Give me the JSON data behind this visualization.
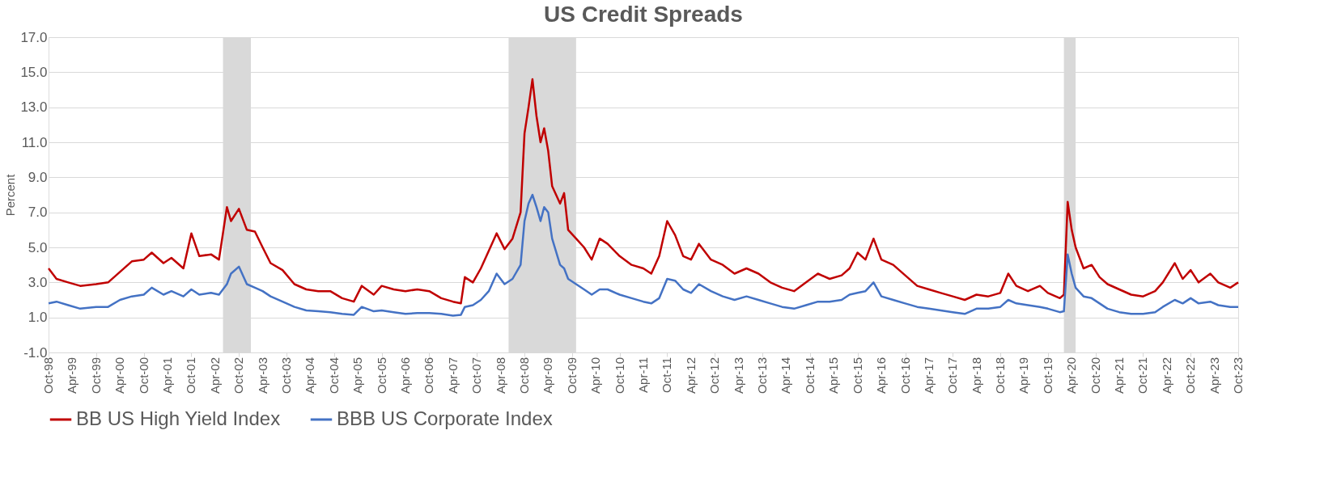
{
  "chart_data": {
    "type": "line",
    "title": "US Credit Spreads",
    "ylabel": "Percent",
    "x": [
      "1998-10",
      "1998-12",
      "1999-03",
      "1999-06",
      "1999-10",
      "2000-01",
      "2000-04",
      "2000-07",
      "2000-10",
      "2000-12",
      "2001-03",
      "2001-05",
      "2001-08",
      "2001-10",
      "2001-12",
      "2002-03",
      "2002-05",
      "2002-07",
      "2002-08",
      "2002-10",
      "2002-12",
      "2003-02",
      "2003-04",
      "2003-06",
      "2003-09",
      "2003-12",
      "2004-03",
      "2004-06",
      "2004-09",
      "2004-12",
      "2005-03",
      "2005-05",
      "2005-08",
      "2005-10",
      "2006-01",
      "2006-04",
      "2006-07",
      "2006-10",
      "2007-01",
      "2007-04",
      "2007-06",
      "2007-07",
      "2007-09",
      "2007-11",
      "2008-01",
      "2008-03",
      "2008-05",
      "2008-07",
      "2008-09",
      "2008-10",
      "2008-11",
      "2008-12",
      "2009-01",
      "2009-02",
      "2009-03",
      "2009-04",
      "2009-05",
      "2009-07",
      "2009-08",
      "2009-09",
      "2009-11",
      "2010-01",
      "2010-03",
      "2010-05",
      "2010-07",
      "2010-10",
      "2011-01",
      "2011-04",
      "2011-06",
      "2011-08",
      "2011-10",
      "2011-12",
      "2012-02",
      "2012-04",
      "2012-06",
      "2012-09",
      "2012-12",
      "2013-03",
      "2013-06",
      "2013-09",
      "2013-12",
      "2014-03",
      "2014-06",
      "2014-09",
      "2014-12",
      "2015-03",
      "2015-06",
      "2015-08",
      "2015-10",
      "2015-12",
      "2016-02",
      "2016-04",
      "2016-07",
      "2016-10",
      "2017-01",
      "2017-04",
      "2017-07",
      "2017-10",
      "2018-01",
      "2018-04",
      "2018-07",
      "2018-10",
      "2018-12",
      "2019-02",
      "2019-05",
      "2019-08",
      "2019-10",
      "2020-01",
      "2020-02",
      "2020-03",
      "2020-04",
      "2020-05",
      "2020-07",
      "2020-09",
      "2020-11",
      "2021-01",
      "2021-04",
      "2021-07",
      "2021-10",
      "2022-01",
      "2022-03",
      "2022-06",
      "2022-08",
      "2022-10",
      "2022-12",
      "2023-03",
      "2023-05",
      "2023-08",
      "2023-10"
    ],
    "series": [
      {
        "name": "BB US High Yield Index",
        "color": "#c00000",
        "values": [
          3.8,
          3.2,
          3.0,
          2.8,
          2.9,
          3.0,
          3.6,
          4.2,
          4.3,
          4.7,
          4.1,
          4.4,
          3.8,
          5.8,
          4.5,
          4.6,
          4.3,
          7.3,
          6.5,
          7.2,
          6.0,
          5.9,
          5.0,
          4.1,
          3.7,
          2.9,
          2.6,
          2.5,
          2.5,
          2.1,
          1.9,
          2.8,
          2.3,
          2.8,
          2.6,
          2.5,
          2.6,
          2.5,
          2.1,
          1.9,
          1.8,
          3.3,
          3.0,
          3.8,
          4.8,
          5.8,
          4.9,
          5.5,
          7.0,
          11.5,
          13.0,
          14.6,
          12.5,
          11.0,
          11.8,
          10.5,
          8.5,
          7.5,
          8.1,
          6.0,
          5.5,
          5.0,
          4.3,
          5.5,
          5.2,
          4.5,
          4.0,
          3.8,
          3.5,
          4.5,
          6.5,
          5.7,
          4.5,
          4.3,
          5.2,
          4.3,
          4.0,
          3.5,
          3.8,
          3.5,
          3.0,
          2.7,
          2.5,
          3.0,
          3.5,
          3.2,
          3.4,
          3.8,
          4.7,
          4.3,
          5.5,
          4.3,
          4.0,
          3.4,
          2.8,
          2.6,
          2.4,
          2.2,
          2.0,
          2.3,
          2.2,
          2.4,
          3.5,
          2.8,
          2.5,
          2.8,
          2.4,
          2.1,
          2.3,
          7.6,
          6.0,
          5.0,
          3.8,
          4.0,
          3.3,
          2.9,
          2.6,
          2.3,
          2.2,
          2.5,
          3.0,
          4.1,
          3.2,
          3.7,
          3.0,
          3.5,
          3.0,
          2.7,
          3.0
        ]
      },
      {
        "name": "BBB US Corporate Index",
        "color": "#4472c4",
        "values": [
          1.8,
          1.9,
          1.7,
          1.5,
          1.6,
          1.6,
          2.0,
          2.2,
          2.3,
          2.7,
          2.3,
          2.5,
          2.2,
          2.6,
          2.3,
          2.4,
          2.3,
          2.9,
          3.5,
          3.9,
          2.9,
          2.7,
          2.5,
          2.2,
          1.9,
          1.6,
          1.4,
          1.35,
          1.3,
          1.2,
          1.15,
          1.6,
          1.35,
          1.4,
          1.3,
          1.2,
          1.25,
          1.25,
          1.2,
          1.1,
          1.15,
          1.6,
          1.7,
          2.0,
          2.5,
          3.5,
          2.9,
          3.2,
          4.0,
          6.5,
          7.5,
          8.0,
          7.3,
          6.5,
          7.3,
          7.0,
          5.5,
          4.0,
          3.8,
          3.2,
          2.9,
          2.6,
          2.3,
          2.6,
          2.6,
          2.3,
          2.1,
          1.9,
          1.8,
          2.1,
          3.2,
          3.1,
          2.6,
          2.4,
          2.9,
          2.5,
          2.2,
          2.0,
          2.2,
          2.0,
          1.8,
          1.6,
          1.5,
          1.7,
          1.9,
          1.9,
          2.0,
          2.3,
          2.4,
          2.5,
          3.0,
          2.2,
          2.0,
          1.8,
          1.6,
          1.5,
          1.4,
          1.3,
          1.2,
          1.5,
          1.5,
          1.6,
          2.0,
          1.8,
          1.7,
          1.6,
          1.5,
          1.3,
          1.35,
          4.6,
          3.5,
          2.7,
          2.2,
          2.1,
          1.8,
          1.5,
          1.3,
          1.2,
          1.2,
          1.3,
          1.6,
          2.0,
          1.8,
          2.1,
          1.8,
          1.9,
          1.7,
          1.6,
          1.6
        ]
      }
    ],
    "xlim": [
      "1998-10",
      "2023-10"
    ],
    "xticks": [
      {
        "value": "1998-10",
        "label": "Oct-98"
      },
      {
        "value": "1999-04",
        "label": "Apr-99"
      },
      {
        "value": "1999-10",
        "label": "Oct-99"
      },
      {
        "value": "2000-04",
        "label": "Apr-00"
      },
      {
        "value": "2000-10",
        "label": "Oct-00"
      },
      {
        "value": "2001-04",
        "label": "Apr-01"
      },
      {
        "value": "2001-10",
        "label": "Oct-01"
      },
      {
        "value": "2002-04",
        "label": "Apr-02"
      },
      {
        "value": "2002-10",
        "label": "Oct-02"
      },
      {
        "value": "2003-04",
        "label": "Apr-03"
      },
      {
        "value": "2003-10",
        "label": "Oct-03"
      },
      {
        "value": "2004-04",
        "label": "Apr-04"
      },
      {
        "value": "2004-10",
        "label": "Oct-04"
      },
      {
        "value": "2005-04",
        "label": "Apr-05"
      },
      {
        "value": "2005-10",
        "label": "Oct-05"
      },
      {
        "value": "2006-04",
        "label": "Apr-06"
      },
      {
        "value": "2006-10",
        "label": "Oct-06"
      },
      {
        "value": "2007-04",
        "label": "Apr-07"
      },
      {
        "value": "2007-10",
        "label": "Oct-07"
      },
      {
        "value": "2008-04",
        "label": "Apr-08"
      },
      {
        "value": "2008-10",
        "label": "Oct-08"
      },
      {
        "value": "2009-04",
        "label": "Apr-09"
      },
      {
        "value": "2009-10",
        "label": "Oct-09"
      },
      {
        "value": "2010-04",
        "label": "Apr-10"
      },
      {
        "value": "2010-10",
        "label": "Oct-10"
      },
      {
        "value": "2011-04",
        "label": "Apr-11"
      },
      {
        "value": "2011-10",
        "label": "Oct-11"
      },
      {
        "value": "2012-04",
        "label": "Apr-12"
      },
      {
        "value": "2012-10",
        "label": "Oct-12"
      },
      {
        "value": "2013-04",
        "label": "Apr-13"
      },
      {
        "value": "2013-10",
        "label": "Oct-13"
      },
      {
        "value": "2014-04",
        "label": "Apr-14"
      },
      {
        "value": "2014-10",
        "label": "Oct-14"
      },
      {
        "value": "2015-04",
        "label": "Apr-15"
      },
      {
        "value": "2015-10",
        "label": "Oct-15"
      },
      {
        "value": "2016-04",
        "label": "Apr-16"
      },
      {
        "value": "2016-10",
        "label": "Oct-16"
      },
      {
        "value": "2017-04",
        "label": "Apr-17"
      },
      {
        "value": "2017-10",
        "label": "Oct-17"
      },
      {
        "value": "2018-04",
        "label": "Apr-18"
      },
      {
        "value": "2018-10",
        "label": "Oct-18"
      },
      {
        "value": "2019-04",
        "label": "Apr-19"
      },
      {
        "value": "2019-10",
        "label": "Oct-19"
      },
      {
        "value": "2020-04",
        "label": "Apr-20"
      },
      {
        "value": "2020-10",
        "label": "Oct-20"
      },
      {
        "value": "2021-04",
        "label": "Apr-21"
      },
      {
        "value": "2021-10",
        "label": "Oct-21"
      },
      {
        "value": "2022-04",
        "label": "Apr-22"
      },
      {
        "value": "2022-10",
        "label": "Oct-22"
      },
      {
        "value": "2023-04",
        "label": "Apr-23"
      },
      {
        "value": "2023-10",
        "label": "Oct-23"
      }
    ],
    "ylim": [
      -1,
      17
    ],
    "yticks": [
      {
        "value": -1,
        "label": "-1.0"
      },
      {
        "value": 1,
        "label": "1.0"
      },
      {
        "value": 3,
        "label": "3.0"
      },
      {
        "value": 5,
        "label": "5.0"
      },
      {
        "value": 7,
        "label": "7.0"
      },
      {
        "value": 9,
        "label": "9.0"
      },
      {
        "value": 11,
        "label": "11.0"
      },
      {
        "value": 13,
        "label": "13.0"
      },
      {
        "value": 15,
        "label": "15.0"
      },
      {
        "value": 17,
        "label": "17.0"
      }
    ],
    "bands": [
      {
        "axis": "x",
        "from": "2002-06",
        "to": "2003-01",
        "color": "#d9d9d9"
      },
      {
        "axis": "x",
        "from": "2008-06",
        "to": "2009-11",
        "color": "#d9d9d9"
      },
      {
        "axis": "x",
        "from": "2020-02",
        "to": "2020-05",
        "color": "#d9d9d9"
      }
    ],
    "grid": "y",
    "legend": "bottom",
    "line_style": "solid",
    "marker": "none"
  }
}
